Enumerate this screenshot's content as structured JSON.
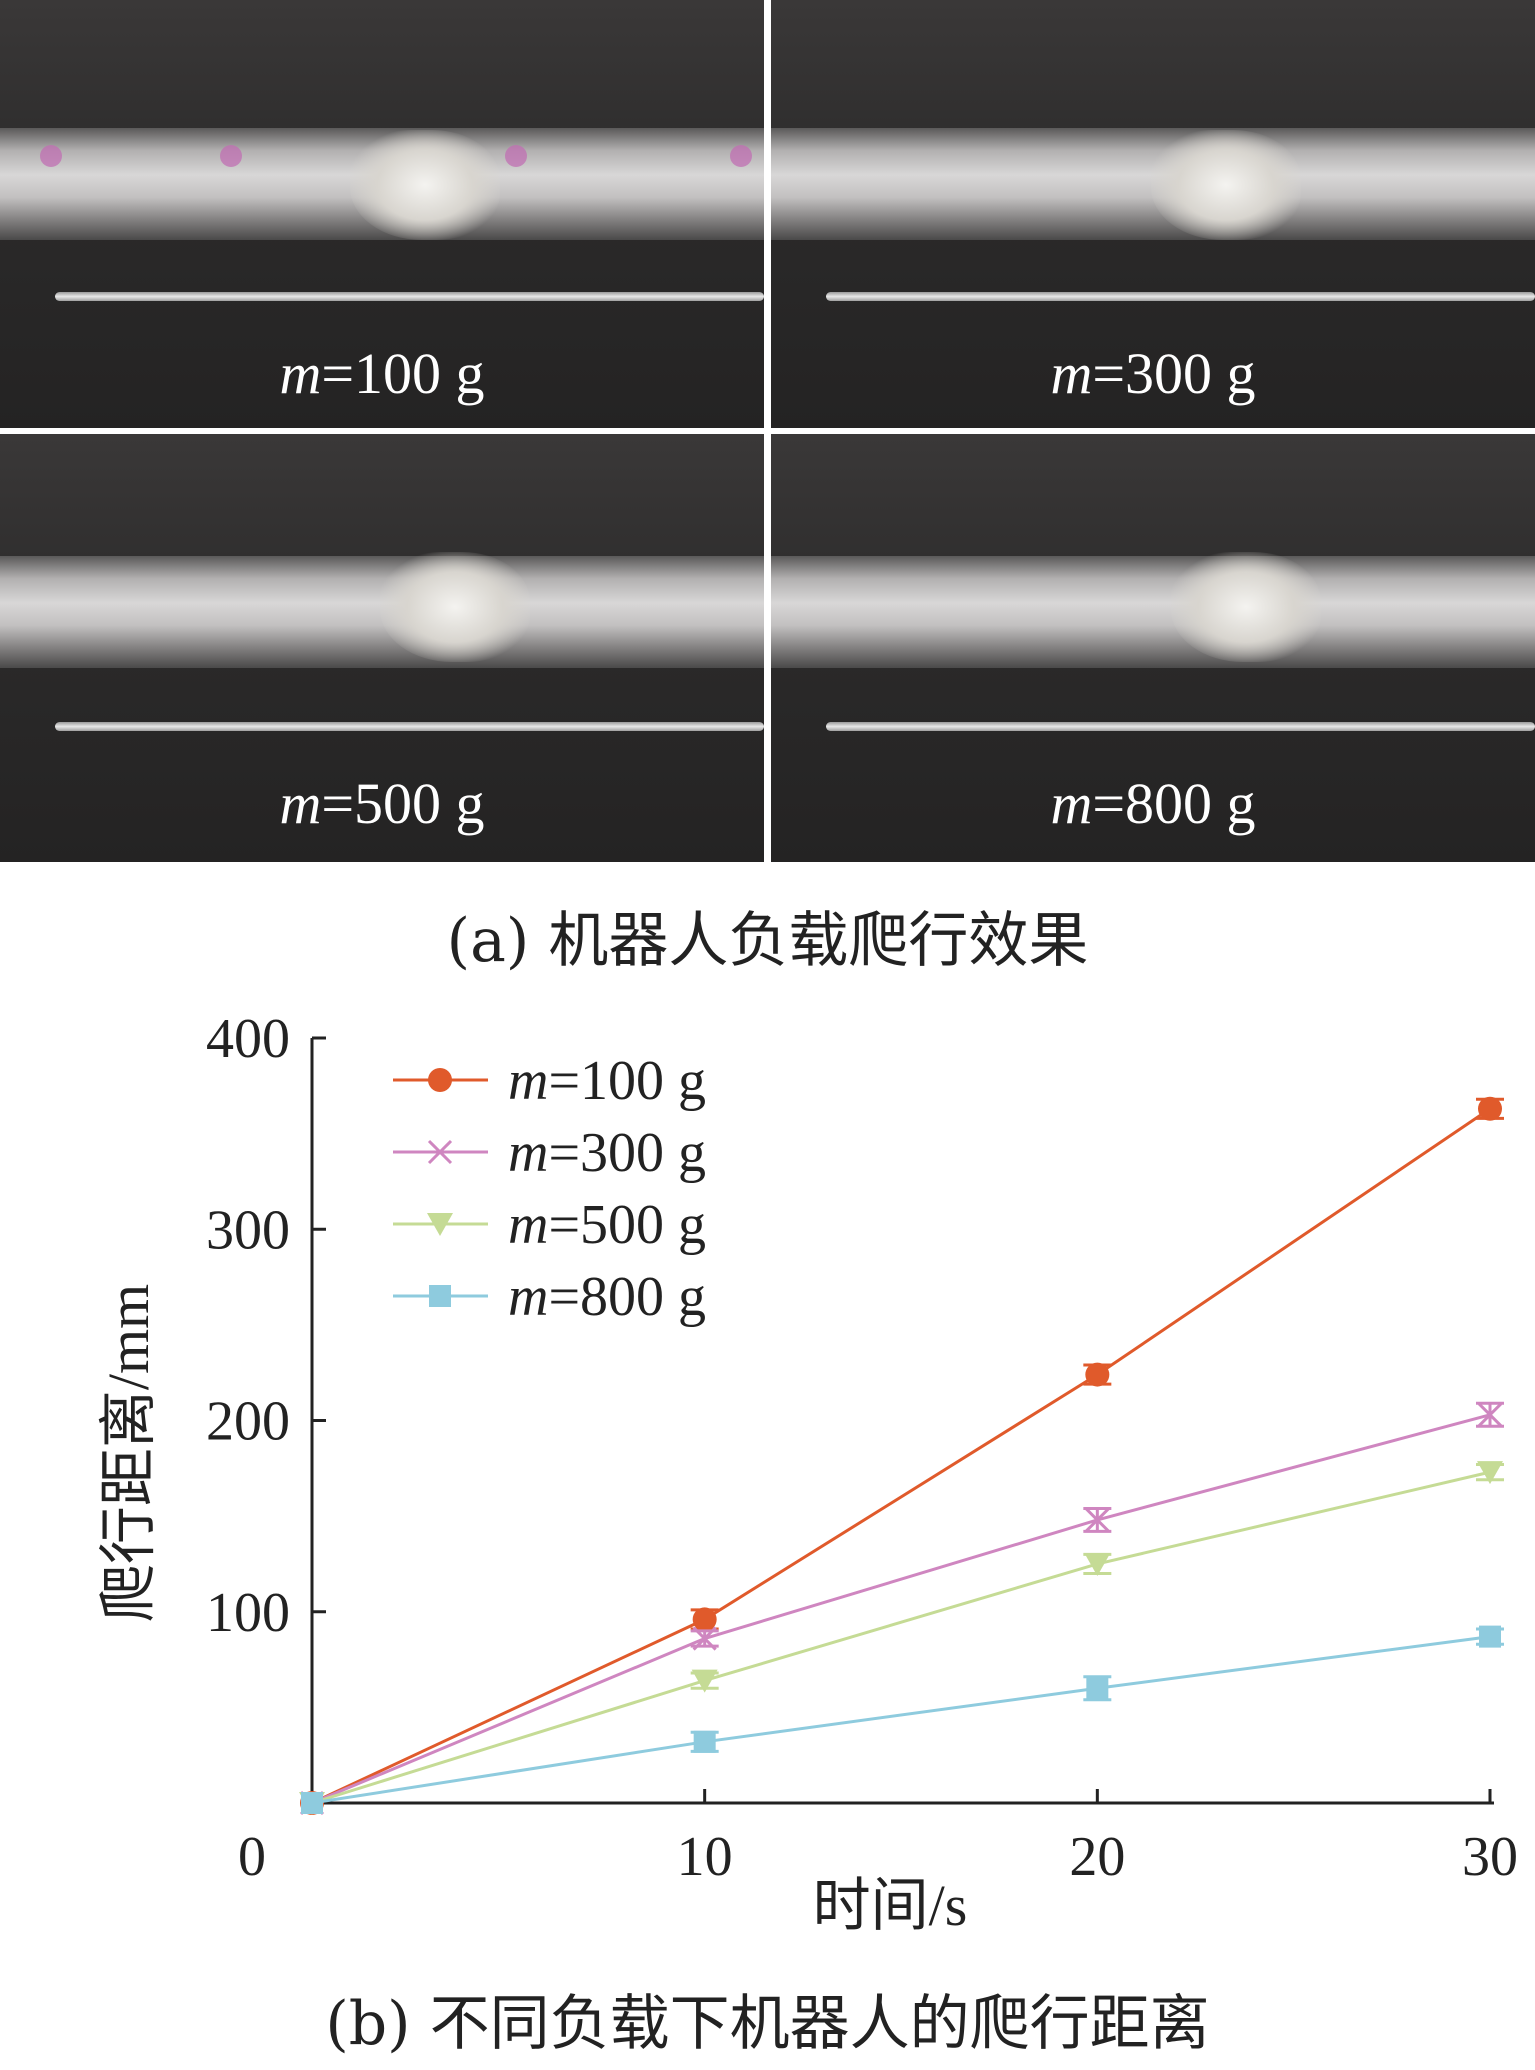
{
  "panel_a": {
    "caption": "(a)  机器人负载爬行效果",
    "photos": [
      {
        "symbol": "m",
        "value_text": "=100 g"
      },
      {
        "symbol": "m",
        "value_text": "=300 g"
      },
      {
        "symbol": "m",
        "value_text": "=500 g"
      },
      {
        "symbol": "m",
        "value_text": "=800 g"
      }
    ]
  },
  "panel_b": {
    "caption": "(b)  不同负载下机器人的爬行距离"
  },
  "chart_data": {
    "type": "line",
    "xlabel": "时间/s",
    "ylabel": "爬行距离/mm",
    "x": [
      0,
      10,
      20,
      30
    ],
    "x_ticks": [
      "0",
      "10",
      "20",
      "30"
    ],
    "y_ticks": [
      "100",
      "200",
      "300",
      "400"
    ],
    "xlim": [
      0,
      30
    ],
    "ylim": [
      0,
      400
    ],
    "grid": false,
    "legend_position": "top-left",
    "series": [
      {
        "name": "m=100 g",
        "legend_symbol": "m",
        "legend_text": "=100 g",
        "marker": "circle",
        "color": "#e05a2b",
        "values": [
          0,
          96,
          224,
          363
        ],
        "errors": [
          0,
          5,
          5,
          5
        ]
      },
      {
        "name": "m=300 g",
        "legend_symbol": "m",
        "legend_text": "=300 g",
        "marker": "x",
        "color": "#cf86c0",
        "values": [
          0,
          86,
          148,
          203
        ],
        "errors": [
          0,
          4,
          6,
          6
        ]
      },
      {
        "name": "m=500 g",
        "legend_symbol": "m",
        "legend_text": "=500 g",
        "marker": "triangle-down",
        "color": "#c5db95",
        "values": [
          0,
          64,
          125,
          173
        ],
        "errors": [
          0,
          4,
          5,
          4
        ]
      },
      {
        "name": "m=800 g",
        "legend_symbol": "m",
        "legend_text": "=800 g",
        "marker": "square",
        "color": "#8ecbde",
        "values": [
          0,
          32,
          60,
          87
        ],
        "errors": [
          0,
          5,
          6,
          4
        ]
      }
    ]
  }
}
